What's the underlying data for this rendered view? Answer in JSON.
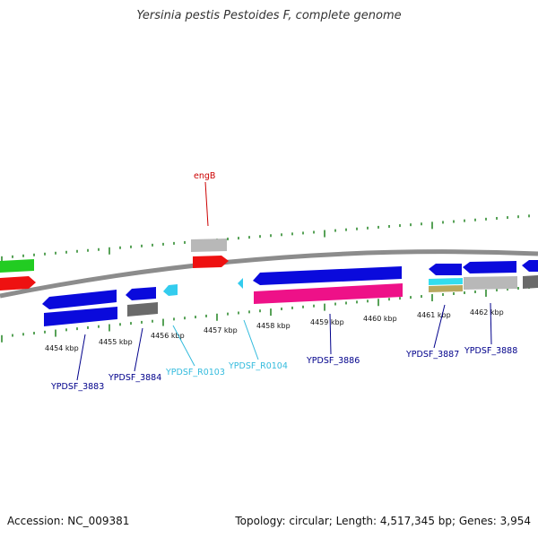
{
  "title": "Yersinia pestis Pestoides F, complete genome",
  "footer": {
    "accession": "Accession: NC_009381",
    "summary": "Topology: circular; Length: 4,517,345 bp; Genes: 3,954"
  },
  "colors": {
    "backbone": "#8c8c8c",
    "tick": "#2e8b2e",
    "cds_blue": "#0a0adc",
    "cds_red": "#ee1111",
    "cds_gray": "#b8b8b8",
    "cds_darkgray": "#6a6a6a",
    "cds_pink": "#ee1188",
    "cds_green": "#22cc22",
    "rna_cyan": "#33ccee",
    "cds_tan": "#b8a860",
    "label_blue": "#00008b",
    "label_cyan": "#33bbdd",
    "label_red": "#cc0000"
  },
  "scale_labels": [
    "4454 kbp",
    "4455 kbp",
    "4456 kbp",
    "4457 kbp",
    "4458 kbp",
    "4459 kbp",
    "4460 kbp",
    "4461 kbp",
    "4462 kbp"
  ],
  "gene_labels": {
    "engB": "engB",
    "ypdsf_3883": "YPDSF_3883",
    "ypdsf_3884": "YPDSF_3884",
    "ypdsf_r0103": "YPDSF_R0103",
    "ypdsf_r0104": "YPDSF_R0104",
    "ypdsf_3886": "YPDSF_3886",
    "ypdsf_3887": "YPDSF_3887",
    "ypdsf_3888": "YPDSF_3888"
  }
}
